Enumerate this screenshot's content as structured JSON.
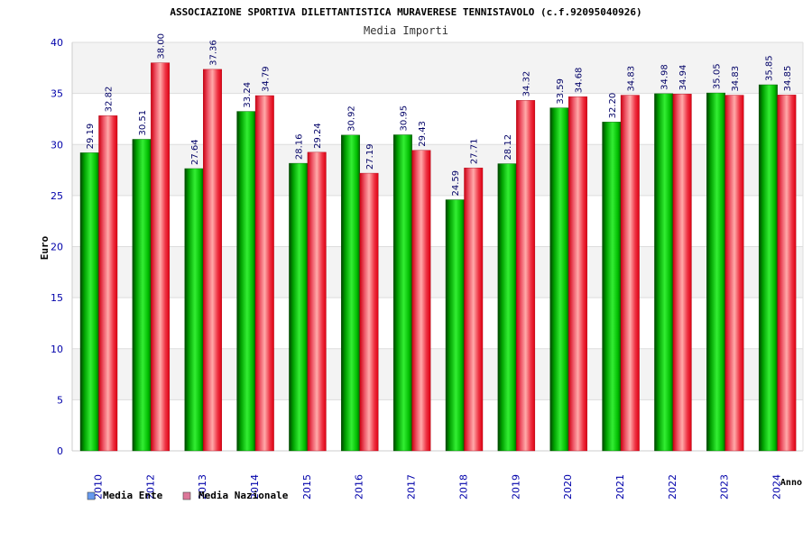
{
  "chart_data": {
    "type": "bar",
    "title": "ASSOCIAZIONE SPORTIVA DILETTANTISTICA MURAVERESE TENNISTAVOLO (c.f.92095040926)",
    "subtitle": "Media Importi",
    "xlabel": "Anno",
    "ylabel": "Euro",
    "ylim": [
      0,
      40
    ],
    "yticks": [
      "0",
      "5",
      "10",
      "15",
      "20",
      "25",
      "30",
      "35",
      "40"
    ],
    "grid": true,
    "legend_position": "bottom-left",
    "categories": [
      "2010",
      "2012",
      "2013",
      "2014",
      "2015",
      "2016",
      "2017",
      "2018",
      "2019",
      "2020",
      "2021",
      "2022",
      "2023",
      "2024"
    ],
    "series": [
      {
        "name": "Media Ente",
        "legend_color": "#6699ee",
        "color": "#00bb00",
        "values": [
          29.19,
          30.51,
          27.64,
          33.24,
          28.16,
          30.92,
          30.95,
          24.59,
          28.12,
          33.59,
          32.2,
          34.98,
          35.05,
          35.85
        ],
        "labels": [
          "29.19",
          "30.51",
          "27.64",
          "33.24",
          "28.16",
          "30.92",
          "30.95",
          "24.59",
          "28.12",
          "33.59",
          "32.20",
          "34.98",
          "35.05",
          "35.85"
        ]
      },
      {
        "name": "Media Nazionale",
        "legend_color": "#dd7799",
        "color": "#ee1122",
        "values": [
          32.82,
          38.0,
          37.36,
          34.79,
          29.24,
          27.19,
          29.43,
          27.71,
          34.32,
          34.68,
          34.83,
          34.94,
          34.83,
          34.85
        ],
        "labels": [
          "32.82",
          "38.00",
          "37.36",
          "34.79",
          "29.24",
          "27.19",
          "29.43",
          "27.71",
          "34.32",
          "34.68",
          "34.83",
          "34.94",
          "34.83",
          "34.85"
        ]
      }
    ]
  }
}
